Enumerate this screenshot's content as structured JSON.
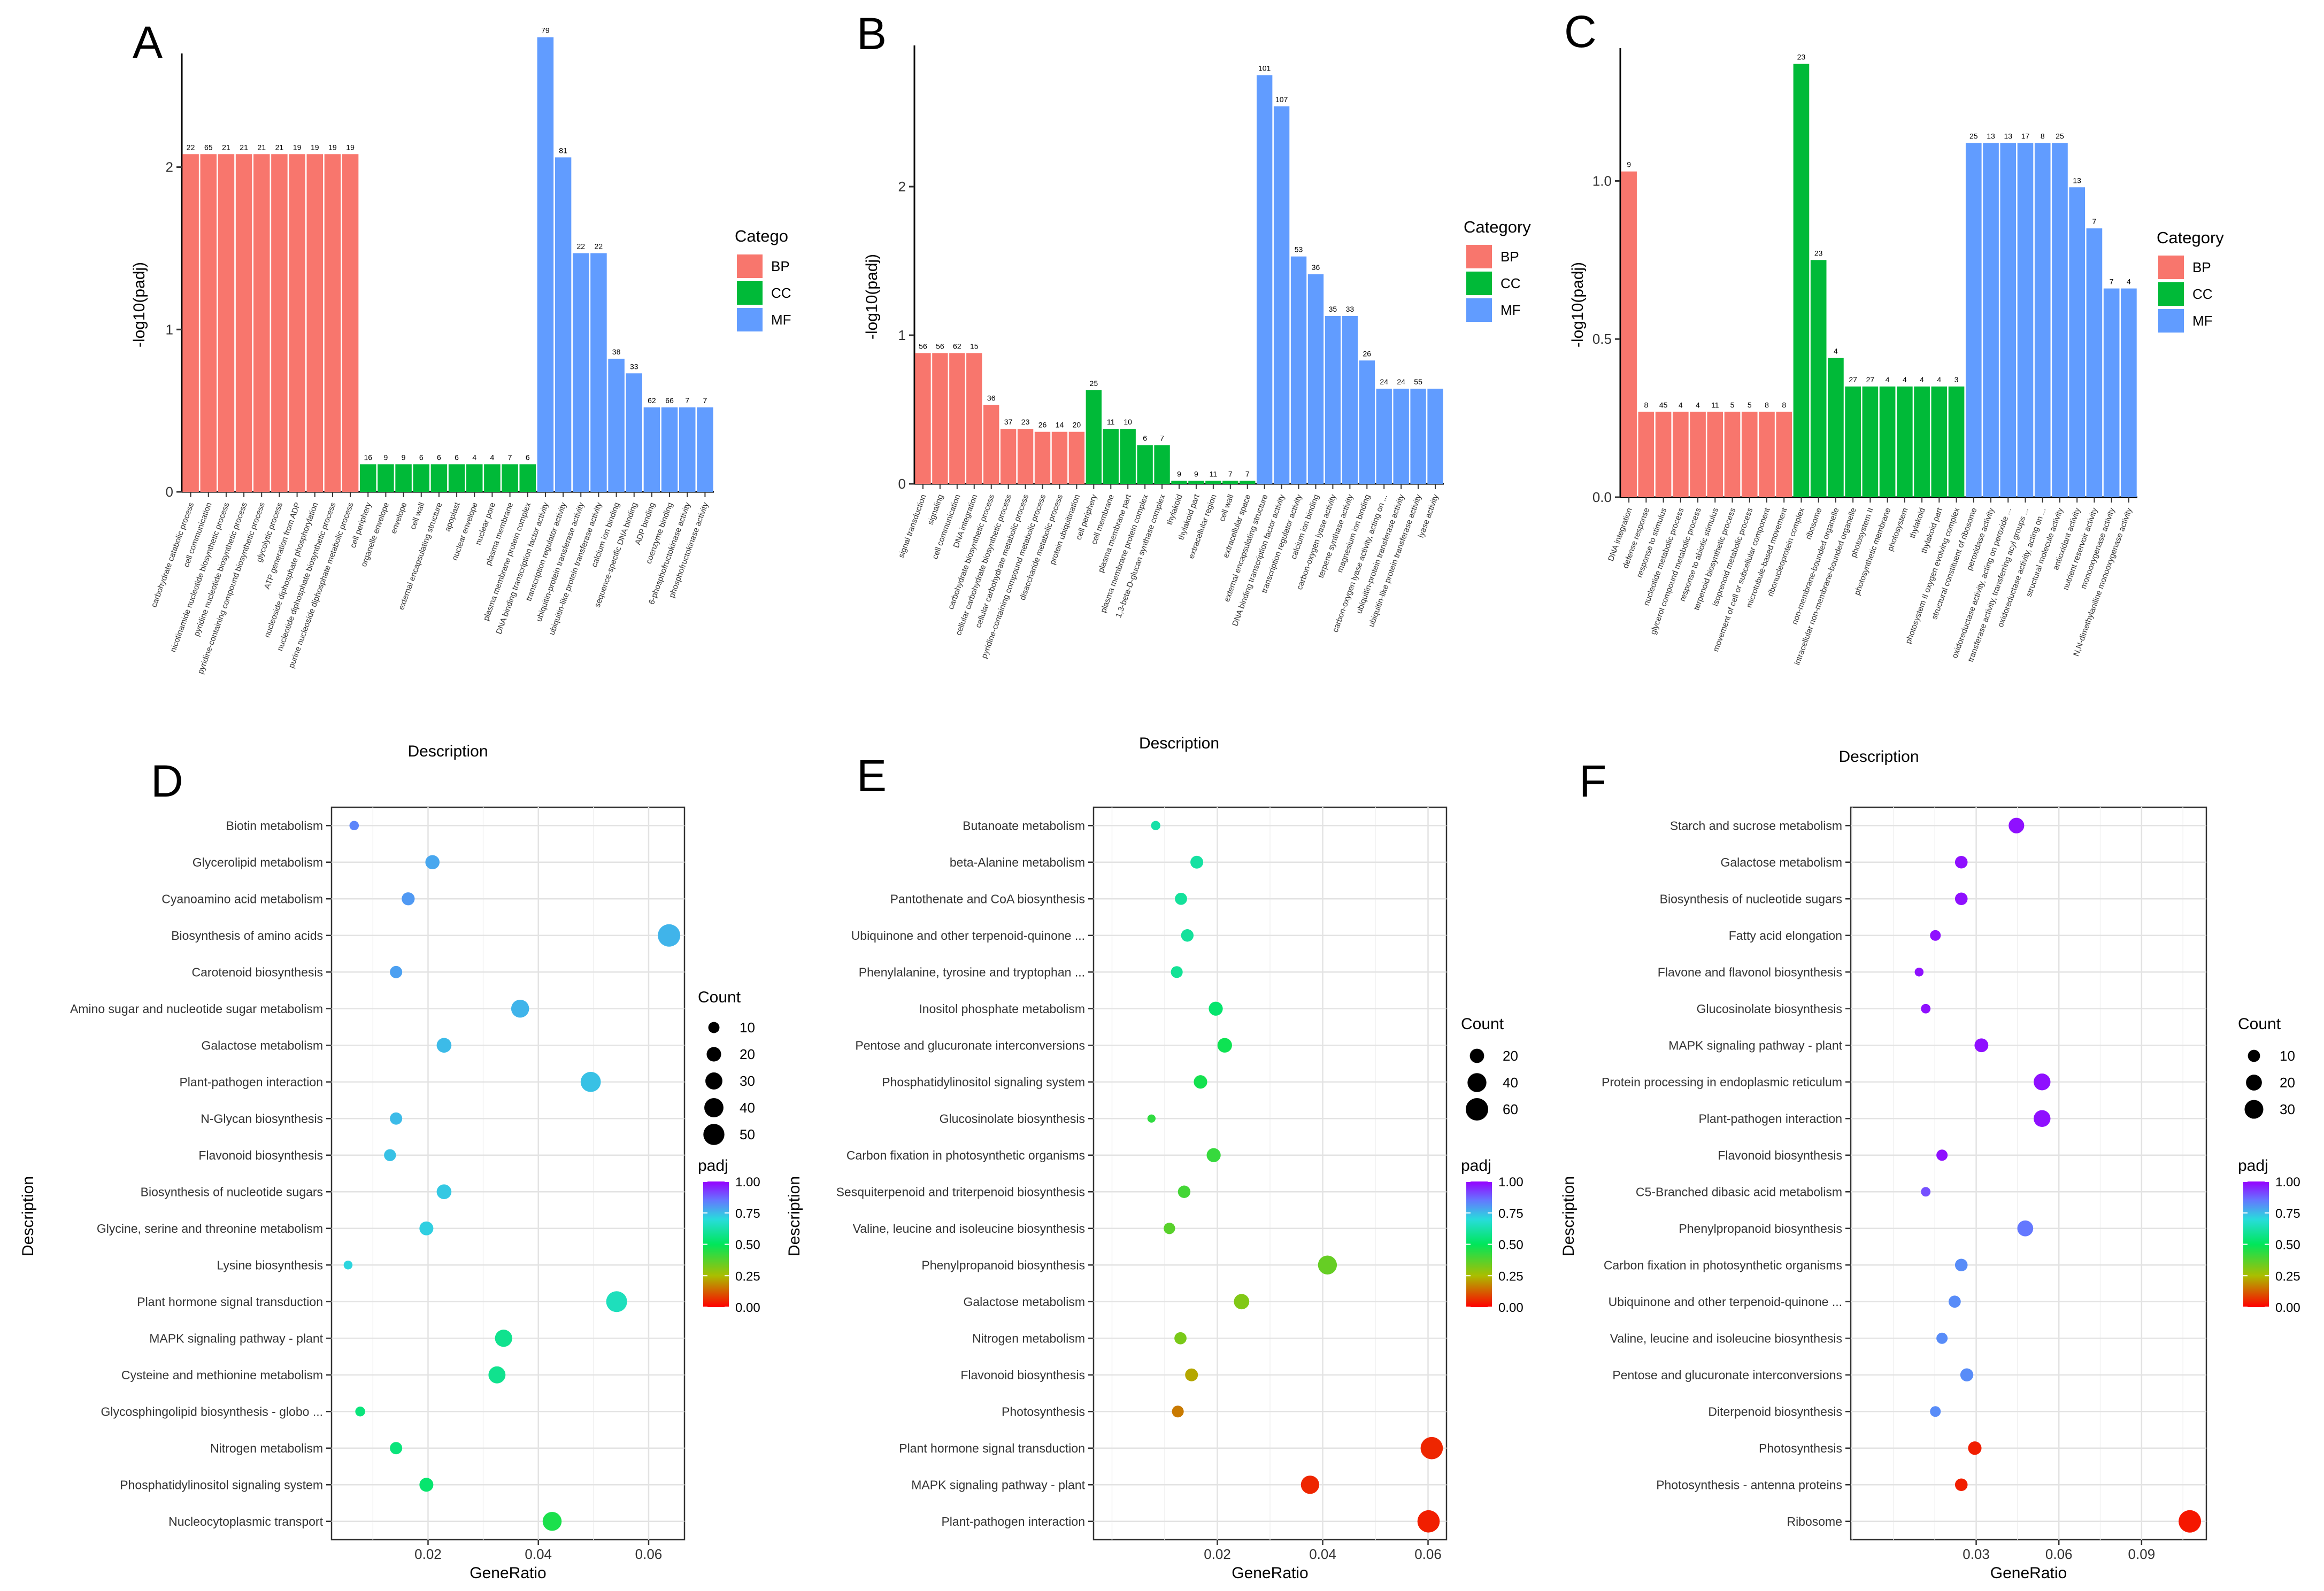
{
  "colors": {
    "BP": "#F8766D",
    "CC": "#00BA38",
    "MF": "#619CFF"
  },
  "panels": {
    "A": {
      "letter": "A",
      "legend_title": "Catego"
    },
    "B": {
      "letter": "B",
      "legend_title": "Category"
    },
    "C": {
      "letter": "C",
      "legend_title": "Category"
    },
    "D": {
      "letter": "D"
    },
    "E": {
      "letter": "E"
    },
    "F": {
      "letter": "F"
    }
  },
  "chart_data": [
    {
      "id": "A",
      "type": "bar",
      "title": "",
      "xlabel": "Description",
      "ylabel": "-log10(padj)",
      "ylim": [
        0,
        2.7
      ],
      "yticks": [
        0,
        1,
        2
      ],
      "legend_entries": [
        "BP",
        "CC",
        "MF"
      ],
      "categories": [
        "carbohydrate catabolic process",
        "cell communication",
        "nicotinamide nucleotide biosynthetic process",
        "pyridine nucleotide biosynthetic process",
        "pyridine-containing compound biosynthetic process",
        "glycolytic process",
        "ATP generation from ADP",
        "nucleoside diphosphate phosphorylation",
        "nucleotide diphosphate biosynthetic process",
        "purine nucleoside diphosphate metabolic process",
        "cell periphery",
        "organelle envelope",
        "envelope",
        "cell wall",
        "external encapsulating structure",
        "apoplast",
        "nuclear envelope",
        "nuclear pore",
        "plasma membrane",
        "plasma membrane protein complex",
        "DNA binding transcription factor activity",
        "transcription regulator activity",
        "ubiquitin-protein transferase activity",
        "ubiquitin-like protein transferase activity",
        "calcium ion binding",
        "sequence-specific DNA binding",
        "ADP binding",
        "coenzyme binding",
        "6-phosphofructokinase activity",
        "phosphofructokinase activity"
      ],
      "groups": [
        "BP",
        "BP",
        "BP",
        "BP",
        "BP",
        "BP",
        "BP",
        "BP",
        "BP",
        "BP",
        "CC",
        "CC",
        "CC",
        "CC",
        "CC",
        "CC",
        "CC",
        "CC",
        "CC",
        "CC",
        "MF",
        "MF",
        "MF",
        "MF",
        "MF",
        "MF",
        "MF",
        "MF",
        "MF",
        "MF"
      ],
      "values": [
        2.08,
        2.08,
        2.08,
        2.08,
        2.08,
        2.08,
        2.08,
        2.08,
        2.08,
        2.08,
        0.17,
        0.17,
        0.17,
        0.17,
        0.17,
        0.17,
        0.17,
        0.17,
        0.17,
        0.17,
        2.8,
        2.06,
        1.47,
        1.47,
        0.82,
        0.73,
        0.52,
        0.52,
        0.52,
        0.52
      ],
      "labels": [
        "22",
        "65",
        "21",
        "21",
        "21",
        "21",
        "19",
        "19",
        "19",
        "19",
        "16",
        "9",
        "9",
        "6",
        "6",
        "6",
        "4",
        "4",
        "7",
        "6",
        "79",
        "81",
        "22",
        "22",
        "38",
        "33",
        "62",
        "66",
        "7",
        "7"
      ]
    },
    {
      "id": "B",
      "type": "bar",
      "title": "",
      "xlabel": "Description",
      "ylabel": "-log10(padj)",
      "ylim": [
        0,
        2.95
      ],
      "yticks": [
        0,
        1,
        2
      ],
      "legend_entries": [
        "BP",
        "CC",
        "MF"
      ],
      "categories": [
        "signal transduction",
        "signaling",
        "cell communication",
        "DNA integration",
        "carbohydrate biosynthetic process",
        "cellular carbohydrate biosynthetic process",
        "cellular carbohydrate metabolic process",
        "pyridine-containing compound metabolic process",
        "disaccharide metabolic process",
        "protein ubiquitination",
        "cell periphery",
        "cell membrane",
        "plasma membrane part",
        "plasma membrane protein complex",
        "1,3-beta-D-glucan synthase complex",
        "thylakoid",
        "thylakoid part",
        "extracellular region",
        "cell wall",
        "extracellular space",
        "external encapsulating structure",
        "DNA binding transcription factor activity",
        "transcription regulator activity",
        "calcium ion binding",
        "carbon-oxygen lyase activity",
        "terpene synthase activity",
        "magnesium ion binding",
        "carbon-oxygen lyase activity, acting on ...",
        "ubiquitin-protein transferase activity",
        "ubiquitin-like protein transferase activity",
        "lyase activity"
      ],
      "groups": [
        "BP",
        "BP",
        "BP",
        "BP",
        "BP",
        "BP",
        "BP",
        "BP",
        "BP",
        "BP",
        "CC",
        "CC",
        "CC",
        "CC",
        "CC",
        "CC",
        "CC",
        "CC",
        "CC",
        "CC",
        "MF",
        "MF",
        "MF",
        "MF",
        "MF",
        "MF",
        "MF",
        "MF",
        "MF",
        "MF",
        "MF"
      ],
      "values": [
        0.88,
        0.88,
        0.88,
        0.88,
        0.53,
        0.37,
        0.37,
        0.35,
        0.35,
        0.35,
        0.63,
        0.37,
        0.37,
        0.26,
        0.26,
        0.02,
        0.02,
        0.02,
        0.02,
        0.02,
        2.75,
        2.54,
        1.53,
        1.41,
        1.13,
        1.13,
        0.83,
        0.64,
        0.64,
        0.64,
        0.64
      ],
      "labels": [
        "56",
        "56",
        "62",
        "15",
        "36",
        "37",
        "23",
        "26",
        "14",
        "20",
        "25",
        "11",
        "10",
        "6",
        "7",
        "9",
        "9",
        "11",
        "7",
        "7",
        "101",
        "107",
        "53",
        "36",
        "35",
        "33",
        "26",
        "24",
        "24",
        "55",
        ""
      ]
    },
    {
      "id": "C",
      "type": "bar",
      "title": "",
      "xlabel": "Description",
      "ylabel": "-log10(padj)",
      "ylim": [
        0,
        1.42
      ],
      "yticks": [
        0.0,
        0.5,
        1.0
      ],
      "legend_entries": [
        "BP",
        "CC",
        "MF"
      ],
      "categories": [
        "DNA integration",
        "defense response",
        "response to stimulus",
        "nucleotide metabolic process",
        "glycerol compound metabolic process",
        "response to abiotic stimulus",
        "terpenoid biosynthetic process",
        "isoprenoid metabolic process",
        "movement of cell or subcellular component",
        "microtubule-based movement",
        "ribonucleoprotein complex",
        "ribosome",
        "non-membrane-bounded organelle",
        "intracellular non-membrane-bounded organelle",
        "photosystem II",
        "photosynthetic membrane",
        "photosystem",
        "thylakoid",
        "thylakoid part",
        "photosystem II oxygen evolving complex",
        "structural constituent of ribosome",
        "peroxidase activity",
        "oxidoreductase activity, acting on peroxide ...",
        "transferase activity, transferring acyl groups ...",
        "oxidoreductase activity, acting on ...",
        "structural molecule activity",
        "antioxidant activity",
        "nutrient reservoir activity",
        "monooxygenase activity",
        "N,N-dimethylaniline monooxygenase activity"
      ],
      "groups": [
        "BP",
        "BP",
        "BP",
        "BP",
        "BP",
        "BP",
        "BP",
        "BP",
        "BP",
        "BP",
        "CC",
        "CC",
        "CC",
        "CC",
        "CC",
        "CC",
        "CC",
        "CC",
        "CC",
        "CC",
        "MF",
        "MF",
        "MF",
        "MF",
        "MF",
        "MF",
        "MF",
        "MF",
        "MF",
        "MF"
      ],
      "values": [
        1.03,
        0.27,
        0.27,
        0.27,
        0.27,
        0.27,
        0.27,
        0.27,
        0.27,
        0.27,
        1.37,
        0.75,
        0.44,
        0.35,
        0.35,
        0.35,
        0.35,
        0.35,
        0.35,
        0.35,
        1.12,
        1.12,
        1.12,
        1.12,
        1.12,
        1.12,
        0.98,
        0.85,
        0.66,
        0.66
      ],
      "labels": [
        "9",
        "8",
        "45",
        "4",
        "4",
        "11",
        "5",
        "5",
        "8",
        "8",
        "23",
        "23",
        "4",
        "27",
        "27",
        "4",
        "4",
        "4",
        "4",
        "3",
        "25",
        "13",
        "13",
        "17",
        "8",
        "25",
        "13",
        "7",
        "7",
        "4"
      ]
    },
    {
      "id": "D",
      "type": "scatter",
      "xlabel": "GeneRatio",
      "ylabel": "Description",
      "xlim": [
        0.0025,
        0.0665
      ],
      "xticks": [
        0.02,
        0.04,
        0.06
      ],
      "xtick_labels": [
        "0.02",
        "0.04",
        "0.06"
      ],
      "size_legend": {
        "title": "Count",
        "values": [
          10,
          20,
          30,
          40,
          50
        ]
      },
      "color_legend": {
        "title": "padj",
        "ticks": [
          1.0,
          0.75,
          0.5,
          0.25,
          0.0
        ],
        "tick_labels": [
          "1.00",
          "0.75",
          "0.50",
          "0.25",
          "0.00"
        ]
      },
      "categories": [
        "Biotin metabolism",
        "Glycerolipid metabolism",
        "Cyanoamino acid metabolism",
        "Biosynthesis of amino acids",
        "Carotenoid biosynthesis",
        "Amino sugar and nucleotide sugar metabolism",
        "Galactose metabolism",
        "Plant-pathogen interaction",
        "N-Glycan biosynthesis",
        "Flavonoid biosynthesis",
        "Biosynthesis of nucleotide sugars",
        "Glycine, serine and threonine metabolism",
        "Lysine biosynthesis",
        "Plant hormone signal transduction",
        "MAPK signaling pathway - plant",
        "Cysteine and methionine metabolism",
        "Glycosphingolipid biosynthesis - globo ...",
        "Nitrogen metabolism",
        "Phosphatidylinositol signaling system",
        "Nucleocytoplasmic transport"
      ],
      "x": [
        0.0066,
        0.0208,
        0.0164,
        0.0637,
        0.0142,
        0.0367,
        0.0229,
        0.0495,
        0.0142,
        0.0131,
        0.0229,
        0.0197,
        0.0055,
        0.0542,
        0.0337,
        0.0325,
        0.0077,
        0.0142,
        0.0197,
        0.0425
      ],
      "count": [
        6,
        19,
        15,
        58,
        13,
        34,
        21,
        45,
        13,
        12,
        21,
        18,
        5,
        49,
        31,
        30,
        7,
        13,
        18,
        39
      ],
      "padj": [
        0.83,
        0.78,
        0.8,
        0.76,
        0.79,
        0.76,
        0.75,
        0.74,
        0.75,
        0.74,
        0.73,
        0.72,
        0.71,
        0.65,
        0.58,
        0.58,
        0.55,
        0.55,
        0.53,
        0.46
      ]
    },
    {
      "id": "E",
      "type": "scatter",
      "xlabel": "GeneRatio",
      "ylabel": "Description",
      "xlim": [
        -0.0035,
        0.0635
      ],
      "xticks": [
        0.02,
        0.04,
        0.06
      ],
      "xtick_labels": [
        "0.02",
        "0.04",
        "0.06"
      ],
      "size_legend": {
        "title": "Count",
        "values": [
          20,
          40,
          60
        ]
      },
      "color_legend": {
        "title": "padj",
        "ticks": [
          1.0,
          0.75,
          0.5,
          0.25,
          0.0
        ],
        "tick_labels": [
          "1.00",
          "0.75",
          "0.50",
          "0.25",
          "0.00"
        ]
      },
      "categories": [
        "Butanoate metabolism",
        "beta-Alanine metabolism",
        "Pantothenate and CoA biosynthesis",
        "Ubiquinone and other terpenoid-quinone ...",
        "Phenylalanine, tyrosine and tryptophan ...",
        "Inositol phosphate metabolism",
        "Pentose and glucuronate interconversions",
        "Phosphatidylinositol signaling system",
        "Glucosinolate biosynthesis",
        "Carbon fixation in photosynthetic organisms",
        "Sesquiterpenoid and triterpenoid biosynthesis",
        "Valine, leucine and isoleucine biosynthesis",
        "Phenylpropanoid biosynthesis",
        "Galactose metabolism",
        "Nitrogen metabolism",
        "Flavonoid biosynthesis",
        "Photosynthesis",
        "Plant hormone signal transduction",
        "MAPK signaling pathway - plant",
        "Plant-pathogen interaction"
      ],
      "x": [
        0.0083,
        0.0161,
        0.0131,
        0.0143,
        0.0123,
        0.0197,
        0.0214,
        0.0168,
        0.0075,
        0.0193,
        0.0137,
        0.0109,
        0.0409,
        0.0246,
        0.013,
        0.0151,
        0.0125,
        0.0607,
        0.0376,
        0.0601
      ],
      "count": [
        6,
        15,
        13,
        14,
        12,
        19,
        21,
        17,
        4,
        19,
        14,
        11,
        40,
        24,
        13,
        15,
        12,
        59,
        37,
        59
      ],
      "padj": [
        0.62,
        0.61,
        0.6,
        0.6,
        0.59,
        0.53,
        0.48,
        0.47,
        0.43,
        0.42,
        0.4,
        0.37,
        0.35,
        0.31,
        0.32,
        0.22,
        0.16,
        0.05,
        0.05,
        0.04
      ]
    },
    {
      "id": "F",
      "type": "scatter",
      "xlabel": "GeneRatio",
      "ylabel": "Description",
      "xlim": [
        -0.0155,
        0.1135
      ],
      "xticks": [
        0.03,
        0.06,
        0.09
      ],
      "xtick_labels": [
        "0.03",
        "0.06",
        "0.09"
      ],
      "size_legend": {
        "title": "Count",
        "values": [
          10,
          20,
          30
        ]
      },
      "color_legend": {
        "title": "padj",
        "ticks": [
          1.0,
          0.75,
          0.5,
          0.25,
          0.0
        ],
        "tick_labels": [
          "1.00",
          "0.75",
          "0.50",
          "0.25",
          "0.00"
        ]
      },
      "categories": [
        "Starch and sucrose metabolism",
        "Galactose metabolism",
        "Biosynthesis of nucleotide sugars",
        "Fatty acid elongation",
        "Flavone and flavonol biosynthesis",
        "Glucosinolate biosynthesis",
        "MAPK signaling pathway - plant",
        "Protein processing in endoplasmic reticulum",
        "Plant-pathogen interaction",
        "Flavonoid biosynthesis",
        "C5-Branched dibasic acid metabolism",
        "Phenylpropanoid biosynthesis",
        "Carbon fixation in photosynthetic organisms",
        "Ubiquinone and other terpenoid-quinone ...",
        "Valine, leucine and isoleucine biosynthesis",
        "Pentose and glucuronate interconversions",
        "Diterpenoid biosynthesis",
        "Photosynthesis",
        "Photosynthesis - antenna proteins",
        "Ribosome"
      ],
      "x": [
        0.0446,
        0.0246,
        0.0246,
        0.0152,
        0.0093,
        0.0117,
        0.0319,
        0.0539,
        0.0539,
        0.0176,
        0.0117,
        0.0478,
        0.0246,
        0.0222,
        0.0176,
        0.0266,
        0.0152,
        0.0295,
        0.0246,
        0.1075
      ],
      "count": [
        19,
        11,
        11,
        7,
        4,
        5,
        14,
        23,
        23,
        8,
        5,
        20,
        11,
        10,
        8,
        12,
        7,
        13,
        11,
        46
      ],
      "padj": [
        0.98,
        0.98,
        0.98,
        0.98,
        0.98,
        0.98,
        0.98,
        0.98,
        0.98,
        0.98,
        0.9,
        0.85,
        0.82,
        0.82,
        0.82,
        0.82,
        0.82,
        0.04,
        0.04,
        0.03
      ]
    }
  ]
}
